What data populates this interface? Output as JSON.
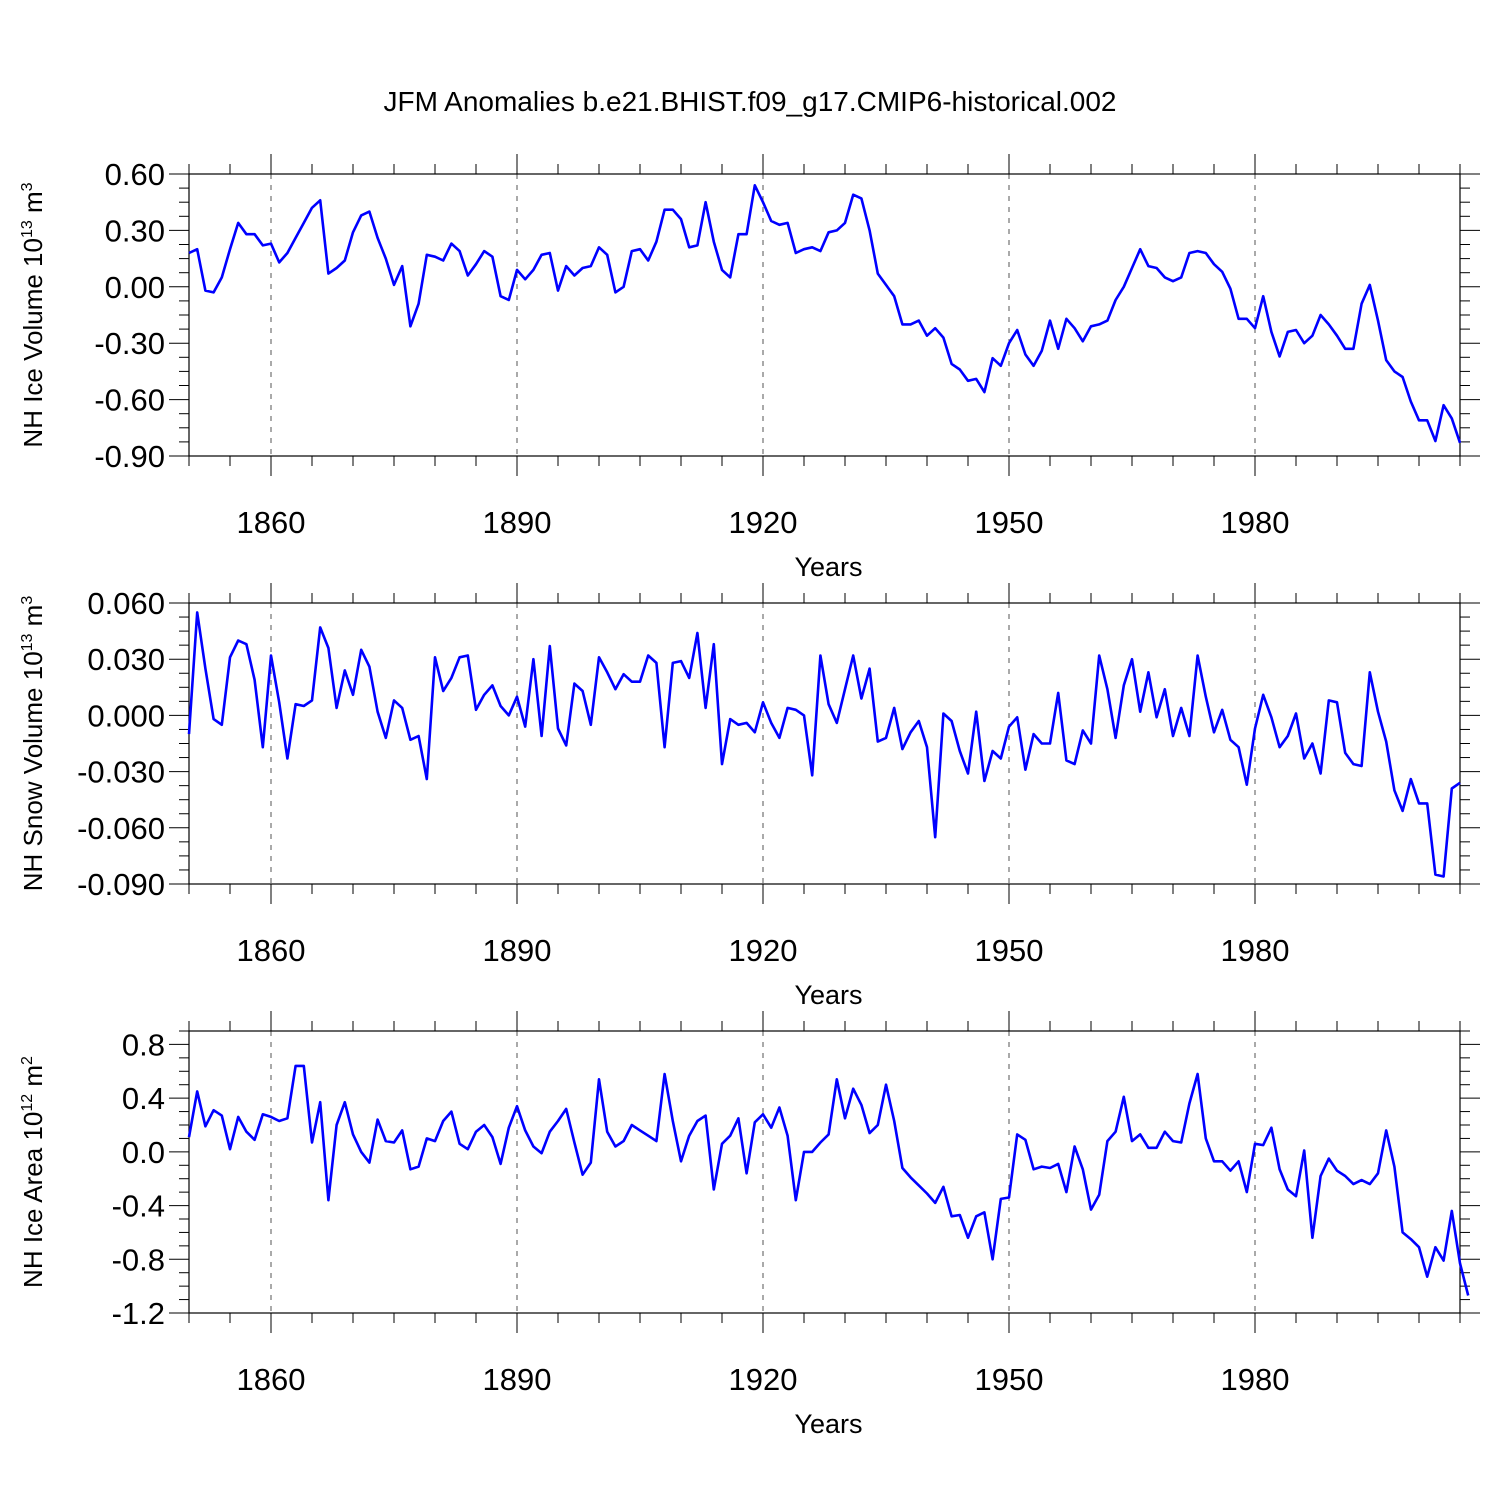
{
  "title": "JFM Anomalies b.e21.BHIST.f09_g17.CMIP6-historical.002",
  "colors": {
    "line": "#0000ff",
    "axis": "#000000",
    "grid": "#555555"
  },
  "chart_data": [
    {
      "type": "line",
      "name": "ice-volume",
      "ylabel_main": "NH Ice Volume 10",
      "ylabel_sup": "13",
      "ylabel_unit": " m",
      "ylabel_unit_sup": "3",
      "xlabel": "Years",
      "xlim": [
        1850,
        2005
      ],
      "ylim": [
        -0.9,
        0.6
      ],
      "yticks": [
        0.6,
        0.3,
        0.0,
        -0.3,
        -0.6,
        -0.9
      ],
      "ytick_labels": [
        "0.60",
        "0.30",
        "0.00",
        "-0.30",
        "-0.60",
        "-0.90"
      ],
      "xticks": [
        1860,
        1890,
        1920,
        1950,
        1980
      ],
      "xtick_labels": [
        "1860",
        "1890",
        "1920",
        "1950",
        "1980"
      ],
      "x_start": 1850,
      "values": [
        0.18,
        0.2,
        -0.02,
        -0.03,
        0.05,
        0.2,
        0.34,
        0.28,
        0.28,
        0.22,
        0.23,
        0.13,
        0.18,
        0.26,
        0.34,
        0.42,
        0.46,
        0.07,
        0.1,
        0.14,
        0.29,
        0.38,
        0.4,
        0.26,
        0.15,
        0.01,
        0.11,
        -0.21,
        -0.09,
        0.17,
        0.16,
        0.14,
        0.23,
        0.19,
        0.06,
        0.12,
        0.19,
        0.16,
        -0.05,
        -0.07,
        0.09,
        0.04,
        0.09,
        0.17,
        0.18,
        -0.02,
        0.11,
        0.06,
        0.1,
        0.11,
        0.21,
        0.17,
        -0.03,
        0.0,
        0.19,
        0.2,
        0.14,
        0.24,
        0.41,
        0.41,
        0.36,
        0.21,
        0.22,
        0.45,
        0.24,
        0.09,
        0.05,
        0.28,
        0.28,
        0.54,
        0.45,
        0.35,
        0.33,
        0.34,
        0.18,
        0.2,
        0.21,
        0.19,
        0.29,
        0.3,
        0.34,
        0.49,
        0.47,
        0.3,
        0.07,
        0.01,
        -0.05,
        -0.2,
        -0.2,
        -0.18,
        -0.26,
        -0.22,
        -0.27,
        -0.41,
        -0.44,
        -0.5,
        -0.49,
        -0.56,
        -0.38,
        -0.42,
        -0.3,
        -0.23,
        -0.36,
        -0.42,
        -0.34,
        -0.18,
        -0.33,
        -0.17,
        -0.22,
        -0.29,
        -0.21,
        -0.2,
        -0.18,
        -0.07,
        0.0,
        0.1,
        0.2,
        0.11,
        0.1,
        0.05,
        0.03,
        0.05,
        0.18,
        0.19,
        0.18,
        0.12,
        0.08,
        -0.01,
        -0.17,
        -0.17,
        -0.22,
        -0.05,
        -0.24,
        -0.37,
        -0.24,
        -0.23,
        -0.3,
        -0.26,
        -0.15,
        -0.2,
        -0.26,
        -0.33,
        -0.33,
        -0.09,
        0.01,
        -0.18,
        -0.39,
        -0.45,
        -0.48,
        -0.61,
        -0.71,
        -0.71,
        -0.82,
        -0.63,
        -0.7,
        -0.83
      ]
    },
    {
      "type": "line",
      "name": "snow-volume",
      "ylabel_main": "NH Snow Volume 10",
      "ylabel_sup": "13",
      "ylabel_unit": " m",
      "ylabel_unit_sup": "3",
      "xlabel": "Years",
      "xlim": [
        1850,
        2005
      ],
      "ylim": [
        -0.09,
        0.06
      ],
      "yticks": [
        0.06,
        0.03,
        0.0,
        -0.03,
        -0.06,
        -0.09
      ],
      "ytick_labels": [
        "0.060",
        "0.030",
        "0.000",
        "-0.030",
        "-0.060",
        "-0.090"
      ],
      "xticks": [
        1860,
        1890,
        1920,
        1950,
        1980
      ],
      "xtick_labels": [
        "1860",
        "1890",
        "1920",
        "1950",
        "1980"
      ],
      "x_start": 1850,
      "values": [
        -0.01,
        0.055,
        0.025,
        -0.002,
        -0.005,
        0.031,
        0.04,
        0.038,
        0.019,
        -0.017,
        0.032,
        0.007,
        -0.023,
        0.006,
        0.005,
        0.008,
        0.047,
        0.036,
        0.004,
        0.024,
        0.011,
        0.035,
        0.026,
        0.002,
        -0.012,
        0.008,
        0.004,
        -0.013,
        -0.011,
        -0.034,
        0.031,
        0.013,
        0.02,
        0.031,
        0.032,
        0.003,
        0.011,
        0.016,
        0.005,
        0.0,
        0.01,
        -0.006,
        0.03,
        -0.011,
        0.037,
        -0.007,
        -0.016,
        0.017,
        0.013,
        -0.005,
        0.031,
        0.023,
        0.014,
        0.022,
        0.018,
        0.018,
        0.032,
        0.028,
        -0.017,
        0.028,
        0.029,
        0.02,
        0.044,
        0.004,
        0.038,
        -0.026,
        -0.002,
        -0.005,
        -0.004,
        -0.009,
        0.007,
        -0.004,
        -0.012,
        0.004,
        0.003,
        0.0,
        -0.032,
        0.032,
        0.006,
        -0.004,
        0.014,
        0.032,
        0.009,
        0.025,
        -0.014,
        -0.012,
        0.004,
        -0.018,
        -0.009,
        -0.003,
        -0.017,
        -0.065,
        0.001,
        -0.003,
        -0.019,
        -0.031,
        0.002,
        -0.035,
        -0.019,
        -0.023,
        -0.006,
        -0.001,
        -0.029,
        -0.01,
        -0.015,
        -0.015,
        0.012,
        -0.024,
        -0.026,
        -0.008,
        -0.015,
        0.032,
        0.014,
        -0.012,
        0.016,
        0.03,
        0.002,
        0.023,
        -0.001,
        0.014,
        -0.011,
        0.004,
        -0.011,
        0.032,
        0.01,
        -0.009,
        0.003,
        -0.013,
        -0.017,
        -0.037,
        -0.007,
        0.011,
        -0.001,
        -0.017,
        -0.011,
        0.001,
        -0.023,
        -0.015,
        -0.031,
        0.008,
        0.007,
        -0.02,
        -0.026,
        -0.027,
        0.023,
        0.002,
        -0.014,
        -0.04,
        -0.051,
        -0.034,
        -0.047,
        -0.047,
        -0.085,
        -0.086,
        -0.039,
        -0.036
      ]
    },
    {
      "type": "line",
      "name": "ice-area",
      "ylabel_main": "NH Ice Area 10",
      "ylabel_sup": "12",
      "ylabel_unit": " m",
      "ylabel_unit_sup": "2",
      "xlabel": "Years",
      "xlim": [
        1850,
        2005
      ],
      "ylim": [
        -1.2,
        0.9
      ],
      "yticks": [
        0.8,
        0.4,
        0.0,
        -0.4,
        -0.8,
        -1.2
      ],
      "ytick_labels": [
        "0.8",
        "0.4",
        "0.0",
        "-0.4",
        "-0.8",
        "-1.2"
      ],
      "xticks": [
        1860,
        1890,
        1920,
        1950,
        1980
      ],
      "xtick_labels": [
        "1860",
        "1890",
        "1920",
        "1950",
        "1980"
      ],
      "x_start": 1850,
      "values": [
        0.11,
        0.45,
        0.19,
        0.31,
        0.27,
        0.02,
        0.26,
        0.15,
        0.09,
        0.28,
        0.26,
        0.23,
        0.25,
        0.64,
        0.64,
        0.07,
        0.37,
        -0.36,
        0.2,
        0.37,
        0.13,
        0.0,
        -0.08,
        0.24,
        0.08,
        0.07,
        0.16,
        -0.13,
        -0.11,
        0.1,
        0.08,
        0.23,
        0.3,
        0.06,
        0.02,
        0.15,
        0.2,
        0.11,
        -0.09,
        0.18,
        0.34,
        0.16,
        0.04,
        -0.01,
        0.15,
        0.23,
        0.32,
        0.07,
        -0.17,
        -0.08,
        0.54,
        0.15,
        0.04,
        0.08,
        0.2,
        0.16,
        0.12,
        0.08,
        0.58,
        0.23,
        -0.07,
        0.12,
        0.23,
        0.27,
        -0.28,
        0.06,
        0.12,
        0.25,
        -0.16,
        0.22,
        0.28,
        0.18,
        0.33,
        0.12,
        -0.36,
        0.0,
        0.0,
        0.07,
        0.13,
        0.54,
        0.25,
        0.47,
        0.35,
        0.14,
        0.2,
        0.5,
        0.23,
        -0.12,
        -0.19,
        -0.25,
        -0.31,
        -0.38,
        -0.26,
        -0.48,
        -0.47,
        -0.64,
        -0.48,
        -0.45,
        -0.8,
        -0.35,
        -0.34,
        0.13,
        0.09,
        -0.13,
        -0.11,
        -0.12,
        -0.09,
        -0.3,
        0.04,
        -0.13,
        -0.43,
        -0.32,
        0.08,
        0.15,
        0.41,
        0.08,
        0.13,
        0.03,
        0.03,
        0.15,
        0.08,
        0.07,
        0.36,
        0.58,
        0.1,
        -0.07,
        -0.07,
        -0.14,
        -0.07,
        -0.3,
        0.06,
        0.05,
        0.18,
        -0.13,
        -0.28,
        -0.33,
        0.01,
        -0.64,
        -0.18,
        -0.05,
        -0.14,
        -0.18,
        -0.24,
        -0.21,
        -0.24,
        -0.16,
        0.16,
        -0.11,
        -0.6,
        -0.65,
        -0.71,
        -0.93,
        -0.71,
        -0.81,
        -0.44,
        -0.83,
        -1.07
      ]
    }
  ]
}
